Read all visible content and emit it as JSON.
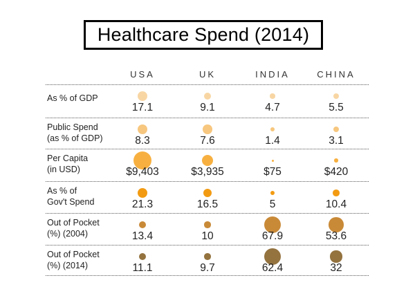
{
  "title": "Healthcare Spend (2014)",
  "columns": [
    "USA",
    "UK",
    "INDIA",
    "CHINA"
  ],
  "rows": [
    {
      "label_lines": [
        "As % of GDP"
      ],
      "values": [
        "17.1",
        "9.1",
        "4.7",
        "5.5"
      ],
      "numeric": [
        17.1,
        9.1,
        4.7,
        5.5
      ],
      "color": "#f8d6a4"
    },
    {
      "label_lines": [
        "Public Spend",
        "(as % of GDP)"
      ],
      "values": [
        "8.3",
        "7.6",
        "1.4",
        "3.1"
      ],
      "numeric": [
        8.3,
        7.6,
        1.4,
        3.1
      ],
      "color": "#f7c77f"
    },
    {
      "label_lines": [
        "Per Capita",
        "(in USD)"
      ],
      "values": [
        "$9,403",
        "$3,935",
        "$75",
        "$420"
      ],
      "numeric": [
        9403,
        3935,
        75,
        420
      ],
      "color": "#f7b040"
    },
    {
      "label_lines": [
        "As % of",
        "Gov't Spend"
      ],
      "values": [
        "21.3",
        "16.5",
        "5",
        "10.4"
      ],
      "numeric": [
        21.3,
        16.5,
        5,
        10.4
      ],
      "color": "#f29b12"
    },
    {
      "label_lines": [
        "Out of Pocket",
        "(%) (2004)"
      ],
      "values": [
        "13.4",
        "10",
        "67.9",
        "53.6"
      ],
      "numeric": [
        13.4,
        10,
        67.9,
        53.6
      ],
      "color": "#c98a38"
    },
    {
      "label_lines": [
        "Out of Pocket",
        "(%) (2014)"
      ],
      "values": [
        "11.1",
        "9.7",
        "62.4",
        "32"
      ],
      "numeric": [
        11.1,
        9.7,
        62.4,
        32
      ],
      "color": "#94733f"
    }
  ],
  "chart_data": {
    "type": "table",
    "title": "Healthcare Spend (2014)",
    "categories": [
      "USA",
      "UK",
      "INDIA",
      "CHINA"
    ],
    "series": [
      {
        "name": "As % of GDP",
        "values": [
          17.1,
          9.1,
          4.7,
          5.5
        ]
      },
      {
        "name": "Public Spend (as % of GDP)",
        "values": [
          8.3,
          7.6,
          1.4,
          3.1
        ]
      },
      {
        "name": "Per Capita (in USD)",
        "values": [
          9403,
          3935,
          75,
          420
        ]
      },
      {
        "name": "As % of Gov't Spend",
        "values": [
          21.3,
          16.5,
          5,
          10.4
        ]
      },
      {
        "name": "Out of Pocket (%) (2004)",
        "values": [
          13.4,
          10,
          67.9,
          53.6
        ]
      },
      {
        "name": "Out of Pocket (%) (2014)",
        "values": [
          11.1,
          9.7,
          62.4,
          32
        ]
      }
    ]
  }
}
